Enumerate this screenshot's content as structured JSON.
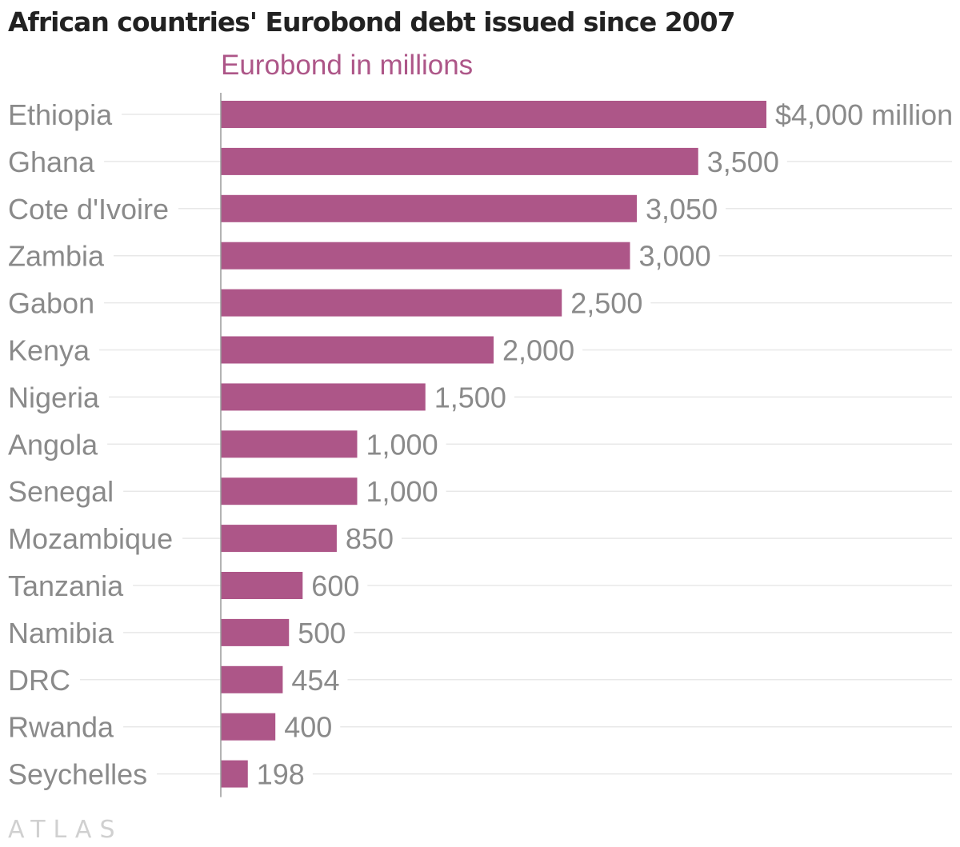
{
  "chart_data": {
    "type": "bar",
    "orientation": "horizontal",
    "title": "African countries' Eurobond debt issued since 2007",
    "series": [
      {
        "name": "Eurobond in millions",
        "values": [
          4000,
          3500,
          3050,
          3000,
          2500,
          2000,
          1500,
          1000,
          1000,
          850,
          600,
          500,
          454,
          400,
          198
        ]
      }
    ],
    "categories": [
      "Ethiopia",
      "Ghana",
      "Cote d'Ivoire",
      "Zambia",
      "Gabon",
      "Kenya",
      "Nigeria",
      "Angola",
      "Senegal",
      "Mozambique",
      "Tanzania",
      "Namibia",
      "DRC",
      "Rwanda",
      "Seychelles"
    ],
    "value_labels": [
      "$4,000 million",
      "3,500",
      "3,050",
      "3,000",
      "2,500",
      "2,000",
      "1,500",
      "1,000",
      "1,000",
      "850",
      "600",
      "500",
      "454",
      "400",
      "198"
    ],
    "xlim": [
      0,
      4000
    ],
    "grid": true,
    "colors": {
      "bar": "#ad5688",
      "label": "#8a8a8a",
      "gridline": "#e8e8e8",
      "axis": "#9a9a9a"
    }
  },
  "watermark": "ATLAS"
}
